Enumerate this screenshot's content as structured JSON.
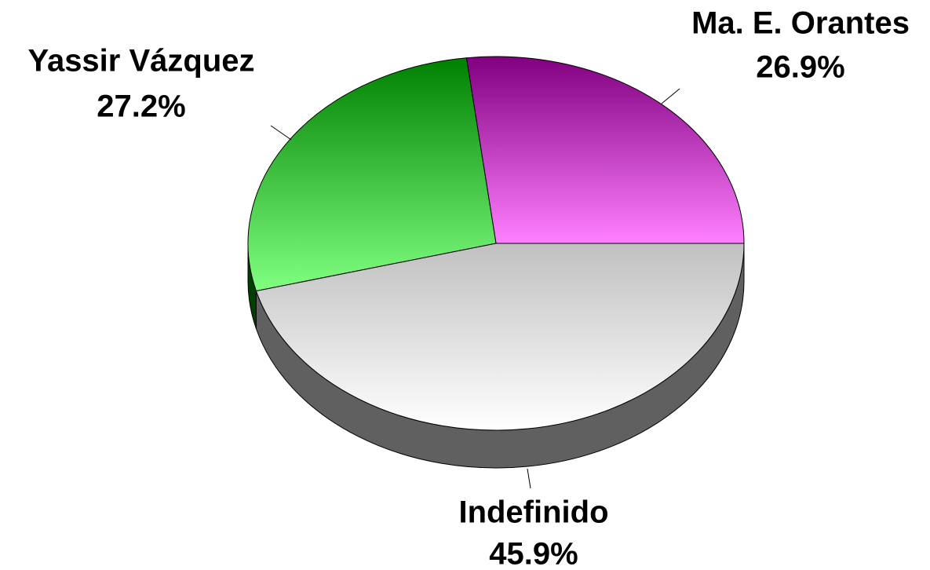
{
  "chart_data": {
    "type": "pie",
    "categories": [
      "Ma. E. Orantes",
      "Yassir Vázquez",
      "Indefinido"
    ],
    "values": [
      26.9,
      27.2,
      45.9
    ],
    "value_labels": [
      "26.9%",
      "27.2%",
      "45.9%"
    ],
    "colors": [
      [
        "#800080",
        "#ff80ff"
      ],
      [
        "#008000",
        "#80ff80"
      ],
      [
        "#c0c0c0",
        "#ffffff"
      ]
    ]
  }
}
